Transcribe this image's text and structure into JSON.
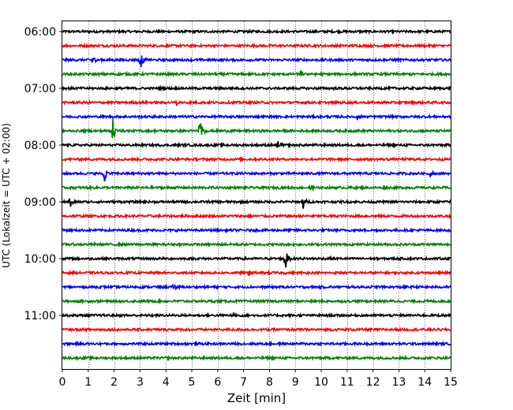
{
  "chart_data": {
    "type": "line",
    "title": "",
    "xlabel": "Zeit  [min]",
    "ylabel": "UTC (Lokalzeit = UTC + 02:00)",
    "xlim": [
      0,
      15
    ],
    "x_ticks": [
      "0",
      "1",
      "2",
      "3",
      "4",
      "5",
      "6",
      "7",
      "8",
      "9",
      "10",
      "11",
      "12",
      "13",
      "14",
      "15"
    ],
    "y_tick_labels": [
      "06:00",
      "07:00",
      "08:00",
      "09:00",
      "10:00",
      "11:00"
    ],
    "y_tick_traces": [
      0,
      4,
      8,
      12,
      16,
      20
    ],
    "grid": "vertical dotted",
    "color_cycle": [
      "#000000",
      "#ff0000",
      "#0000ff",
      "#008000"
    ],
    "trace_interval_minutes": 15,
    "start_time": "06:00",
    "num_traces": 24,
    "noise_amplitude": 0.08,
    "events": [
      {
        "trace": 2,
        "t": 1.15,
        "amp": 0.35
      },
      {
        "trace": 2,
        "t": 3.0,
        "amp": 0.9
      },
      {
        "trace": 3,
        "t": 9.2,
        "amp": 0.25
      },
      {
        "trace": 5,
        "t": 4.4,
        "amp": 0.3
      },
      {
        "trace": 6,
        "t": 11.4,
        "amp": 0.3
      },
      {
        "trace": 7,
        "t": 1.95,
        "amp": 0.9
      },
      {
        "trace": 7,
        "t": 5.3,
        "amp": 1.1
      },
      {
        "trace": 8,
        "t": 8.3,
        "amp": 0.45
      },
      {
        "trace": 10,
        "t": 1.6,
        "amp": 0.9
      },
      {
        "trace": 10,
        "t": 14.2,
        "amp": 0.35
      },
      {
        "trace": 11,
        "t": 9.6,
        "amp": 0.3
      },
      {
        "trace": 12,
        "t": 0.3,
        "amp": 0.45
      },
      {
        "trace": 12,
        "t": 9.3,
        "amp": 0.6
      },
      {
        "trace": 16,
        "t": 8.6,
        "amp": 1.1
      },
      {
        "trace": 17,
        "t": 7.2,
        "amp": 0.35
      },
      {
        "trace": 18,
        "t": 4.3,
        "amp": 0.3
      },
      {
        "trace": 20,
        "t": 6.6,
        "amp": 0.2
      }
    ]
  }
}
